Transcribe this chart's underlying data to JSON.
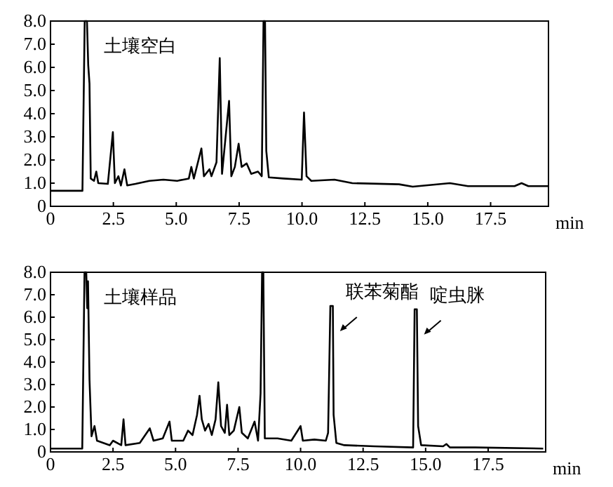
{
  "chart_data": [
    {
      "type": "line",
      "title": "土壤空白",
      "xlabel": "min",
      "color": "#000000",
      "marker": "none",
      "line_style": "solid",
      "grid": false,
      "x": [
        0,
        1.27,
        1.36,
        1.45,
        1.5,
        1.55,
        1.6,
        1.73,
        1.82,
        1.9,
        2.28,
        2.48,
        2.56,
        2.7,
        2.8,
        2.94,
        3.05,
        3.38,
        3.93,
        4.49,
        5.04,
        5.5,
        5.6,
        5.7,
        6.0,
        6.1,
        6.32,
        6.4,
        6.6,
        6.73,
        6.82,
        7.1,
        7.19,
        7.33,
        7.48,
        7.6,
        7.8,
        7.98,
        8.25,
        8.4,
        8.47,
        8.53,
        8.58,
        8.68,
        9.26,
        9.99,
        10.08,
        10.18,
        10.37,
        11.29,
        12.0,
        13.86,
        14.4,
        15.88,
        16.6,
        18.45,
        18.73,
        19.0,
        19.78
      ],
      "values": [
        0.67,
        0.67,
        8.0,
        8.0,
        6.1,
        5.3,
        1.2,
        1.1,
        1.5,
        1.0,
        0.97,
        3.2,
        1.0,
        1.3,
        0.9,
        1.6,
        0.9,
        0.97,
        1.1,
        1.15,
        1.1,
        1.2,
        1.7,
        1.2,
        2.5,
        1.3,
        1.6,
        1.3,
        1.9,
        6.4,
        1.4,
        4.55,
        1.3,
        1.7,
        2.7,
        1.7,
        1.85,
        1.4,
        1.5,
        1.3,
        8.0,
        8.0,
        2.4,
        1.25,
        1.2,
        1.15,
        4.05,
        1.3,
        1.1,
        1.15,
        1.0,
        0.95,
        0.85,
        1.0,
        0.87,
        0.87,
        1.0,
        0.87,
        0.87
      ],
      "xlim": [
        0,
        19.8
      ],
      "ylim": [
        0,
        8
      ],
      "xticks": [
        0,
        2.5,
        {
          "value": 5,
          "label": "5.0"
        },
        7.5,
        {
          "value": 10,
          "label": "10.0"
        },
        12.5,
        {
          "value": 15,
          "label": "15.0"
        },
        17.5
      ],
      "yticks": [
        0,
        {
          "value": 1,
          "label": "1.0"
        },
        {
          "value": 2,
          "label": "2.0"
        },
        {
          "value": 3,
          "label": "3.0"
        },
        {
          "value": 4,
          "label": "4.0"
        },
        {
          "value": 5,
          "label": "5.0"
        },
        {
          "value": 6,
          "label": "6.0"
        },
        {
          "value": 7,
          "label": "7.0"
        },
        {
          "value": 8,
          "label": "8.0"
        }
      ]
    },
    {
      "type": "line",
      "title": "土壤样品",
      "xlabel": "min",
      "color": "#000000",
      "marker": "none",
      "line_style": "solid",
      "grid": false,
      "x": [
        0,
        1.27,
        1.36,
        1.43,
        1.47,
        1.5,
        1.56,
        1.64,
        1.76,
        1.86,
        2.37,
        2.5,
        2.83,
        2.92,
        3.0,
        3.57,
        3.97,
        4.12,
        4.49,
        4.76,
        4.85,
        5.31,
        5.5,
        5.68,
        5.86,
        5.96,
        6.05,
        6.18,
        6.32,
        6.45,
        6.6,
        6.71,
        6.82,
        6.97,
        7.06,
        7.15,
        7.33,
        7.55,
        7.65,
        7.89,
        8.16,
        8.3,
        8.4,
        8.46,
        8.51,
        8.57,
        9.08,
        9.63,
        10.0,
        10.09,
        10.55,
        11.01,
        11.1,
        11.19,
        11.29,
        11.32,
        11.43,
        11.75,
        12.94,
        14.5,
        14.56,
        14.65,
        14.7,
        14.82,
        15.7,
        15.83,
        15.97,
        16.99,
        19.7
      ],
      "values": [
        0.15,
        0.15,
        8.0,
        8.0,
        6.4,
        7.6,
        3.2,
        0.7,
        1.15,
        0.5,
        0.3,
        0.5,
        0.3,
        1.45,
        0.3,
        0.4,
        1.05,
        0.5,
        0.6,
        1.35,
        0.5,
        0.5,
        0.95,
        0.75,
        1.65,
        2.5,
        1.45,
        0.95,
        1.25,
        0.75,
        1.45,
        3.1,
        1.15,
        0.85,
        2.1,
        0.75,
        0.95,
        2.0,
        0.85,
        0.6,
        1.35,
        0.5,
        2.6,
        8.0,
        8.0,
        0.6,
        0.6,
        0.5,
        1.15,
        0.5,
        0.55,
        0.5,
        0.85,
        6.5,
        6.5,
        1.65,
        0.4,
        0.3,
        0.25,
        0.2,
        6.35,
        6.35,
        1.15,
        0.3,
        0.25,
        0.35,
        0.2,
        0.2,
        0.15
      ],
      "xlim": [
        0,
        19.8
      ],
      "ylim": [
        0,
        8
      ],
      "xticks": [
        0,
        2.5,
        {
          "value": 5,
          "label": "5.0"
        },
        7.5,
        {
          "value": 10,
          "label": "10.0"
        },
        12.5,
        {
          "value": 15,
          "label": "15.0"
        },
        17.5
      ],
      "yticks": [
        0,
        {
          "value": 1,
          "label": "1.0"
        },
        {
          "value": 2,
          "label": "2.0"
        },
        {
          "value": 3,
          "label": "3.0"
        },
        {
          "value": 4,
          "label": "4.0"
        },
        {
          "value": 5,
          "label": "5.0"
        },
        {
          "value": 6,
          "label": "6.0"
        },
        {
          "value": 7,
          "label": "7.0"
        },
        {
          "value": 8,
          "label": "8.0"
        }
      ],
      "annotations": [
        {
          "text": "联苯菊酯",
          "x": 11.24,
          "y": 6.5
        },
        {
          "text": "啶虫脒",
          "x": 14.6,
          "y": 6.35
        }
      ]
    }
  ]
}
